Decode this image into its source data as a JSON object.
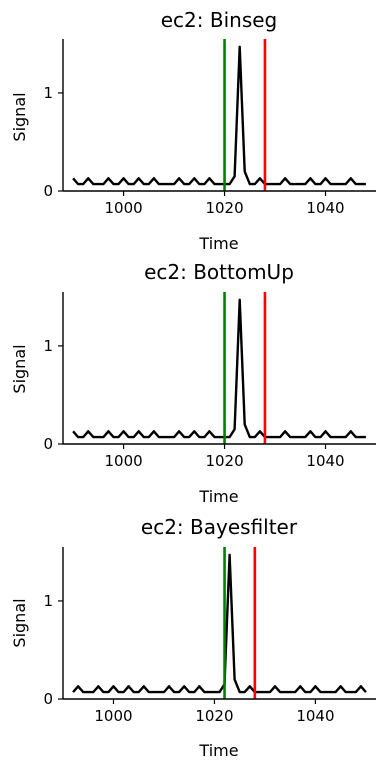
{
  "figure": {
    "background": "#ffffff",
    "signal_color": "#000000",
    "true_cp_color": "#008000",
    "pred_cp_color": "#ff0000"
  },
  "chart_data": [
    {
      "type": "line",
      "title": "ec2: Binseg",
      "xlabel": "Time",
      "ylabel": "Signal",
      "xlim": [
        988,
        1050
      ],
      "ylim": [
        0,
        1.55
      ],
      "xticks": [
        1000,
        1020,
        1040
      ],
      "yticks": [
        0,
        1
      ],
      "grid": false,
      "series": [
        {
          "x": [
            990,
            991,
            992,
            993,
            994,
            995,
            996,
            997,
            998,
            999,
            1000,
            1001,
            1002,
            1003,
            1004,
            1005,
            1006,
            1007,
            1008,
            1009,
            1010,
            1011,
            1012,
            1013,
            1014,
            1015,
            1016,
            1017,
            1018,
            1019,
            1020,
            1021,
            1022,
            1023,
            1024,
            1025,
            1026,
            1027,
            1028,
            1029,
            1030,
            1031,
            1032,
            1033,
            1034,
            1035,
            1036,
            1037,
            1038,
            1039,
            1040,
            1041,
            1042,
            1043,
            1044,
            1045,
            1046,
            1047,
            1048
          ],
          "y": [
            0.13,
            0.07,
            0.07,
            0.13,
            0.07,
            0.07,
            0.07,
            0.13,
            0.07,
            0.07,
            0.13,
            0.07,
            0.07,
            0.13,
            0.07,
            0.07,
            0.13,
            0.07,
            0.07,
            0.07,
            0.07,
            0.13,
            0.07,
            0.07,
            0.13,
            0.07,
            0.07,
            0.13,
            0.07,
            0.07,
            0.07,
            0.07,
            0.15,
            1.47,
            0.2,
            0.07,
            0.07,
            0.13,
            0.07,
            0.07,
            0.07,
            0.07,
            0.13,
            0.07,
            0.07,
            0.07,
            0.07,
            0.13,
            0.07,
            0.07,
            0.13,
            0.07,
            0.07,
            0.07,
            0.07,
            0.13,
            0.07,
            0.07,
            0.07
          ]
        }
      ],
      "true_changepoint": 1020,
      "predicted_changepoint": 1028
    },
    {
      "type": "line",
      "title": "ec2: BottomUp",
      "xlabel": "Time",
      "ylabel": "Signal",
      "xlim": [
        988,
        1050
      ],
      "ylim": [
        0,
        1.55
      ],
      "xticks": [
        1000,
        1020,
        1040
      ],
      "yticks": [
        0,
        1
      ],
      "grid": false,
      "series": [
        {
          "x": [
            990,
            991,
            992,
            993,
            994,
            995,
            996,
            997,
            998,
            999,
            1000,
            1001,
            1002,
            1003,
            1004,
            1005,
            1006,
            1007,
            1008,
            1009,
            1010,
            1011,
            1012,
            1013,
            1014,
            1015,
            1016,
            1017,
            1018,
            1019,
            1020,
            1021,
            1022,
            1023,
            1024,
            1025,
            1026,
            1027,
            1028,
            1029,
            1030,
            1031,
            1032,
            1033,
            1034,
            1035,
            1036,
            1037,
            1038,
            1039,
            1040,
            1041,
            1042,
            1043,
            1044,
            1045,
            1046,
            1047,
            1048
          ],
          "y": [
            0.13,
            0.07,
            0.07,
            0.13,
            0.07,
            0.07,
            0.07,
            0.13,
            0.07,
            0.07,
            0.13,
            0.07,
            0.07,
            0.13,
            0.07,
            0.07,
            0.13,
            0.07,
            0.07,
            0.07,
            0.07,
            0.13,
            0.07,
            0.07,
            0.13,
            0.07,
            0.07,
            0.13,
            0.07,
            0.07,
            0.07,
            0.07,
            0.15,
            1.47,
            0.2,
            0.07,
            0.07,
            0.13,
            0.07,
            0.07,
            0.07,
            0.07,
            0.13,
            0.07,
            0.07,
            0.07,
            0.07,
            0.13,
            0.07,
            0.07,
            0.13,
            0.07,
            0.07,
            0.07,
            0.07,
            0.13,
            0.07,
            0.07,
            0.07
          ]
        }
      ],
      "true_changepoint": 1020,
      "predicted_changepoint": 1028
    },
    {
      "type": "line",
      "title": "ec2: Bayesfilter",
      "xlabel": "Time",
      "ylabel": "Signal",
      "xlim": [
        990,
        1052
      ],
      "ylim": [
        0,
        1.55
      ],
      "xticks": [
        1000,
        1020,
        1040
      ],
      "yticks": [
        0,
        1
      ],
      "grid": false,
      "series": [
        {
          "x": [
            992,
            993,
            994,
            995,
            996,
            997,
            998,
            999,
            1000,
            1001,
            1002,
            1003,
            1004,
            1005,
            1006,
            1007,
            1008,
            1009,
            1010,
            1011,
            1012,
            1013,
            1014,
            1015,
            1016,
            1017,
            1018,
            1019,
            1020,
            1021,
            1022,
            1023,
            1024,
            1025,
            1026,
            1027,
            1028,
            1029,
            1030,
            1031,
            1032,
            1033,
            1034,
            1035,
            1036,
            1037,
            1038,
            1039,
            1040,
            1041,
            1042,
            1043,
            1044,
            1045,
            1046,
            1047,
            1048,
            1049,
            1050
          ],
          "y": [
            0.07,
            0.13,
            0.07,
            0.07,
            0.07,
            0.13,
            0.07,
            0.07,
            0.13,
            0.07,
            0.07,
            0.13,
            0.07,
            0.07,
            0.13,
            0.07,
            0.07,
            0.07,
            0.07,
            0.13,
            0.07,
            0.07,
            0.13,
            0.07,
            0.07,
            0.13,
            0.07,
            0.07,
            0.07,
            0.07,
            0.15,
            1.47,
            0.2,
            0.07,
            0.07,
            0.13,
            0.07,
            0.07,
            0.07,
            0.07,
            0.13,
            0.07,
            0.07,
            0.07,
            0.07,
            0.13,
            0.07,
            0.07,
            0.13,
            0.07,
            0.07,
            0.07,
            0.07,
            0.13,
            0.07,
            0.07,
            0.07,
            0.13,
            0.07
          ]
        }
      ],
      "true_changepoint": 1022,
      "predicted_changepoint": 1028
    }
  ]
}
